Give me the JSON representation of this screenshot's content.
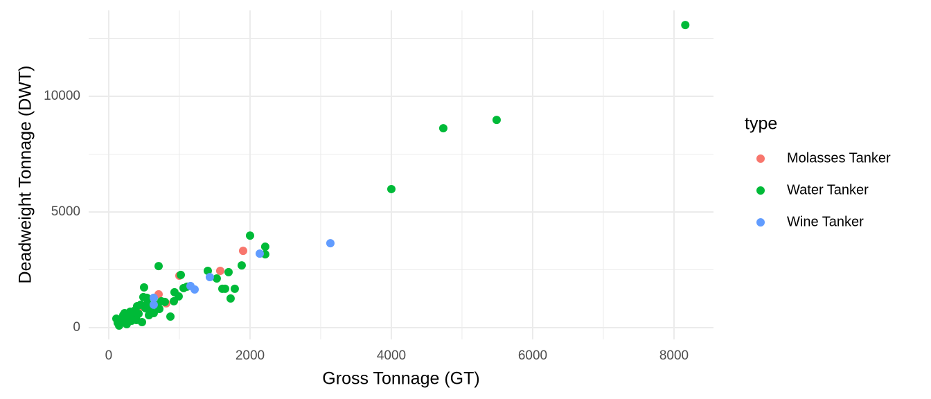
{
  "chart_data": {
    "type": "scatter",
    "x_label": "Gross Tonnage (GT)",
    "y_label": "Deadweight Tonnage (DWT)",
    "legend_title": "type",
    "xlim": [
      -284,
      8559
    ],
    "ylim": [
      -509,
      13713
    ],
    "xticks": [
      0,
      2000,
      4000,
      6000,
      8000
    ],
    "yticks": [
      0,
      5000,
      10000
    ],
    "x_minor_ticks": [
      1000,
      3000,
      5000,
      7000
    ],
    "y_minor_ticks": [
      2500,
      7500,
      12500
    ],
    "grid": true,
    "legend": "right",
    "series": [
      {
        "name": "Molasses Tanker",
        "color": "#F8766D",
        "x": [
          1902,
          1578,
          706,
          814,
          1000,
          412,
          471
        ],
        "values": [
          3320,
          2455,
          1440,
          1050,
          2245,
          690,
          930
        ]
      },
      {
        "name": "Water Tanker",
        "color": "#00BA38",
        "x": [
          8160,
          5490,
          4735,
          4000,
          2000,
          2215,
          2215,
          1882,
          1696,
          1402,
          1529,
          1608,
          1647,
          1784,
          1725,
          706,
          1020,
          1108,
          1059,
          931,
          990,
          922,
          873,
          745,
          500,
          490,
          471,
          108,
          127,
          147,
          176,
          206,
          225,
          275,
          304,
          343,
          373,
          402,
          422,
          451,
          520,
          549,
          598,
          637,
          667,
          716,
          794,
          255,
          324,
          569,
          539,
          392
        ],
        "values": [
          13080,
          8980,
          8620,
          5990,
          3980,
          3500,
          3170,
          2690,
          2400,
          2455,
          2125,
          1680,
          1680,
          1680,
          1260,
          2660,
          2280,
          1770,
          1710,
          1530,
          1350,
          1140,
          480,
          1140,
          1740,
          1320,
          240,
          390,
          210,
          90,
          330,
          540,
          630,
          390,
          690,
          450,
          750,
          930,
          600,
          990,
          840,
          1050,
          750,
          630,
          990,
          810,
          1110,
          150,
          300,
          540,
          1290,
          330
        ]
      },
      {
        "name": "Wine Tanker",
        "color": "#619CFF",
        "x": [
          3137,
          2137,
          1431,
          1216,
          637,
          637,
          1157
        ],
        "values": [
          3650,
          3200,
          2185,
          1650,
          1290,
          990,
          1800
        ]
      }
    ]
  }
}
